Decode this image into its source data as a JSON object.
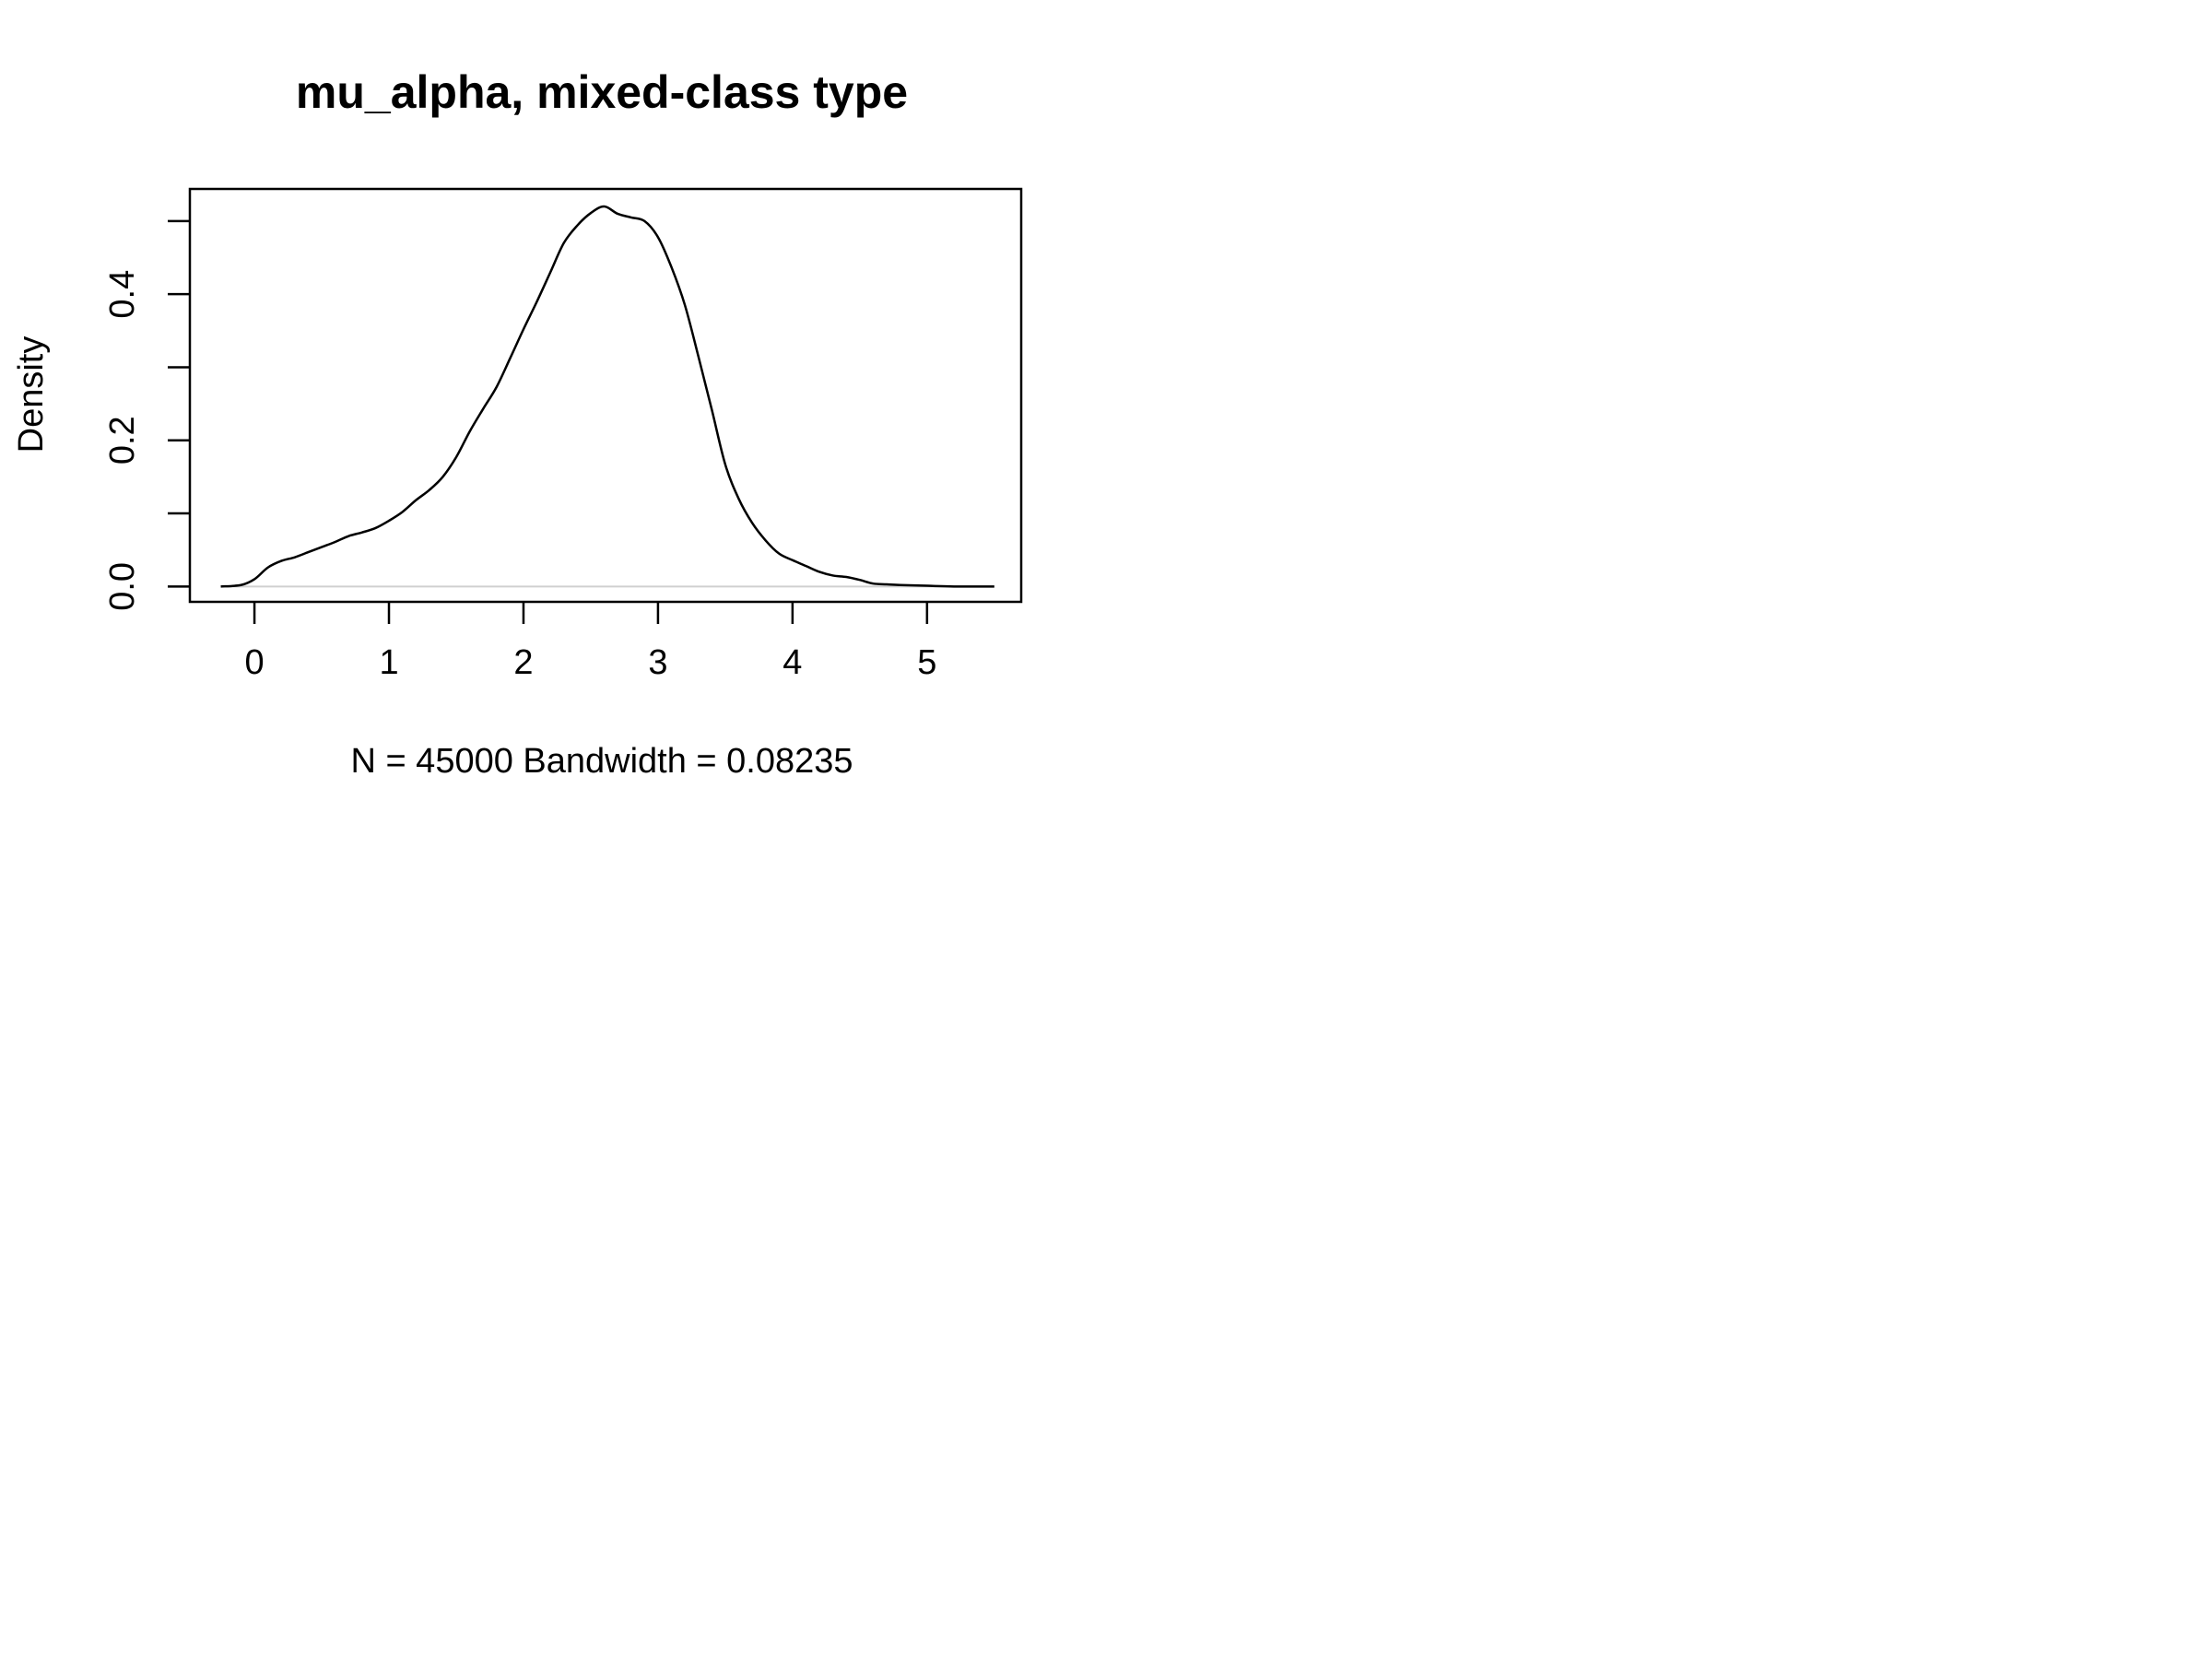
{
  "chart_data": {
    "type": "line",
    "title": "mu_alpha,  mixed-class type",
    "xlabel": "N = 45000   Bandwidth = 0.08235",
    "ylabel": "Density",
    "xlim": [
      -0.48,
      5.7
    ],
    "ylim": [
      -0.021,
      0.544
    ],
    "x_ticks": [
      0,
      1,
      2,
      3,
      4,
      5
    ],
    "x_tick_labels": [
      "0",
      "1",
      "2",
      "3",
      "4",
      "5"
    ],
    "y_ticks": [
      0.0,
      0.1,
      0.2,
      0.3,
      0.4,
      0.5
    ],
    "y_tick_labels": [
      "0.0",
      "",
      "0.2",
      "",
      "0.4",
      ""
    ],
    "grid": false,
    "baseline": 0,
    "series": [
      {
        "color": "#000000",
        "x": [
          -0.25,
          -0.1,
          0.0,
          0.1,
          0.2,
          0.3,
          0.4,
          0.5,
          0.6,
          0.7,
          0.8,
          0.9,
          1.0,
          1.1,
          1.2,
          1.3,
          1.4,
          1.5,
          1.6,
          1.7,
          1.8,
          1.9,
          2.0,
          2.1,
          2.2,
          2.3,
          2.4,
          2.5,
          2.6,
          2.7,
          2.8,
          2.9,
          3.0,
          3.1,
          3.2,
          3.3,
          3.4,
          3.5,
          3.6,
          3.7,
          3.8,
          3.9,
          4.0,
          4.1,
          4.2,
          4.3,
          4.4,
          4.5,
          4.6,
          4.7,
          4.8,
          5.0,
          5.2,
          5.5
        ],
        "y": [
          0.0,
          0.002,
          0.01,
          0.026,
          0.035,
          0.04,
          0.047,
          0.054,
          0.061,
          0.069,
          0.074,
          0.08,
          0.09,
          0.102,
          0.118,
          0.132,
          0.15,
          0.177,
          0.212,
          0.243,
          0.273,
          0.312,
          0.352,
          0.39,
          0.43,
          0.47,
          0.494,
          0.511,
          0.52,
          0.51,
          0.505,
          0.5,
          0.478,
          0.437,
          0.385,
          0.315,
          0.242,
          0.167,
          0.12,
          0.087,
          0.063,
          0.045,
          0.036,
          0.028,
          0.02,
          0.015,
          0.013,
          0.009,
          0.004,
          0.003,
          0.002,
          0.001,
          0.0,
          0.0
        ]
      }
    ]
  }
}
